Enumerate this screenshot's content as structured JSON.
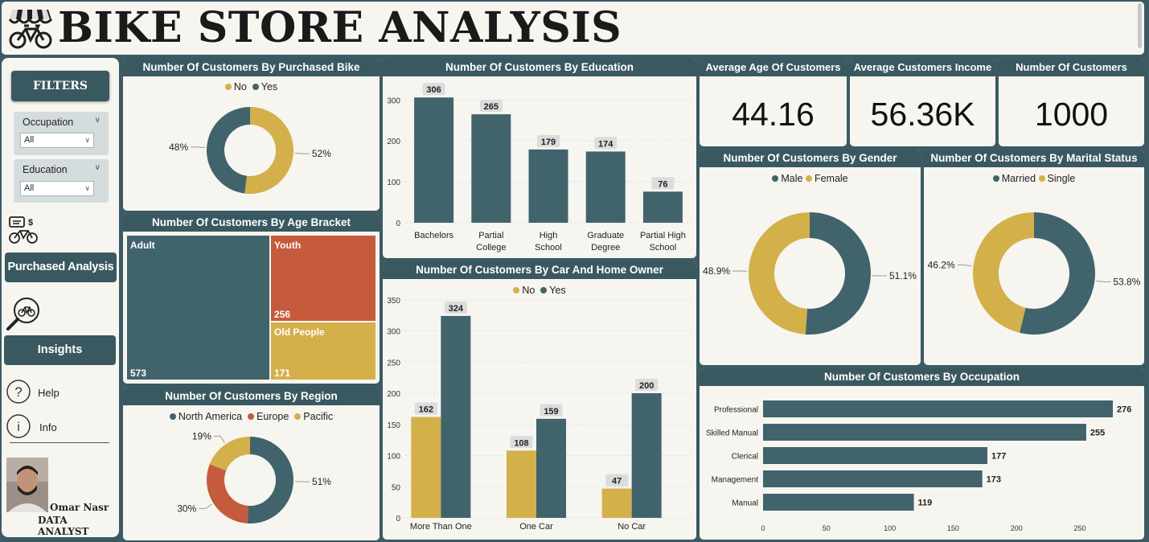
{
  "header": {
    "title": "BIKE STORE ANALYSIS",
    "logo_icon": "bike-store-icon"
  },
  "colors": {
    "teal": "#41636c",
    "gold": "#d4b04a",
    "red": "#c55a3c",
    "header": "#3a5860"
  },
  "sidebar": {
    "filters_label": "FILTERS",
    "occupation": {
      "label": "Occupation",
      "value": "All"
    },
    "education": {
      "label": "Education",
      "value": "All"
    },
    "purchased_label": "Purchased Analysis",
    "insights_label": "Insights",
    "help_label": "Help",
    "info_label": "Info",
    "profile_name": "Omar Nasr",
    "profile_role": "DATA ANALYST"
  },
  "kpis": {
    "avg_age": {
      "title": "Average Age Of Customers",
      "value": "44.16"
    },
    "avg_income": {
      "title": "Average Customers Income",
      "value": "56.36K"
    },
    "num_customers": {
      "title": "Number Of Customers",
      "value": "1000"
    }
  },
  "charts": {
    "purchased": {
      "title": "Number Of Customers By Purchased Bike",
      "chart_data": {
        "type": "pie",
        "categories": [
          "No",
          "Yes"
        ],
        "values": [
          52,
          48
        ],
        "labels": [
          "52%",
          "48%"
        ],
        "colors": [
          "#d4b04a",
          "#41636c"
        ],
        "legend": "top"
      }
    },
    "age": {
      "title": "Number Of Customers By Age Bracket",
      "chart_data": {
        "type": "treemap",
        "categories": [
          "Adult",
          "Youth",
          "Old People"
        ],
        "values": [
          573,
          256,
          171
        ],
        "colors": [
          "#41636c",
          "#c55a3c",
          "#d4b04a"
        ]
      }
    },
    "region": {
      "title": "Number Of Customers By Region",
      "chart_data": {
        "type": "pie",
        "categories": [
          "North America",
          "Europe",
          "Pacific"
        ],
        "values": [
          51,
          30,
          19
        ],
        "labels": [
          "51%",
          "30%",
          "19%"
        ],
        "colors": [
          "#41636c",
          "#c55a3c",
          "#d4b04a"
        ],
        "legend": "top"
      }
    },
    "education": {
      "title": "Number Of Customers By Education",
      "chart_data": {
        "type": "bar",
        "categories": [
          [
            "Bachelors"
          ],
          [
            "Partial",
            "College"
          ],
          [
            "High",
            "School"
          ],
          [
            "Graduate",
            "Degree"
          ],
          [
            "Partial High",
            "School"
          ]
        ],
        "values": [
          306,
          265,
          179,
          174,
          76
        ],
        "ylim": [
          0,
          330
        ],
        "yticks": [
          0,
          100,
          200,
          300
        ],
        "grid": true
      }
    },
    "car_home": {
      "title": "Number Of Customers By Car And Home Owner",
      "chart_data": {
        "type": "bar",
        "categories": [
          "More Than One",
          "One Car",
          "No Car"
        ],
        "series": [
          {
            "name": "No",
            "values": [
              162,
              108,
              47
            ],
            "color": "#d4b04a"
          },
          {
            "name": "Yes",
            "values": [
              324,
              159,
              200
            ],
            "color": "#41636c"
          }
        ],
        "ylim": [
          0,
          360
        ],
        "yticks": [
          0,
          50,
          100,
          150,
          200,
          250,
          300,
          350
        ],
        "legend": "top",
        "grid": true
      }
    },
    "gender": {
      "title": "Number Of Customers By Gender",
      "chart_data": {
        "type": "pie",
        "categories": [
          "Male",
          "Female"
        ],
        "values": [
          51.1,
          48.9
        ],
        "labels": [
          "51.1%",
          "48.9%"
        ],
        "colors": [
          "#41636c",
          "#d4b04a"
        ],
        "legend": "top"
      }
    },
    "marital": {
      "title": "Number Of Customers By Marital Status",
      "chart_data": {
        "type": "pie",
        "categories": [
          "Married",
          "Single"
        ],
        "values": [
          53.8,
          46.2
        ],
        "labels": [
          "53.8%",
          "46.2%"
        ],
        "colors": [
          "#41636c",
          "#d4b04a"
        ],
        "legend": "top"
      }
    },
    "occupation": {
      "title": "Number Of Customers By Occupation",
      "chart_data": {
        "type": "bar",
        "orientation": "horizontal",
        "categories": [
          "Professional",
          "Skilled Manual",
          "Clerical",
          "Management",
          "Manual"
        ],
        "values": [
          276,
          255,
          177,
          173,
          119
        ],
        "xlim": [
          0,
          276
        ],
        "xticks": [
          0,
          50,
          100,
          150,
          200,
          250
        ]
      }
    }
  }
}
